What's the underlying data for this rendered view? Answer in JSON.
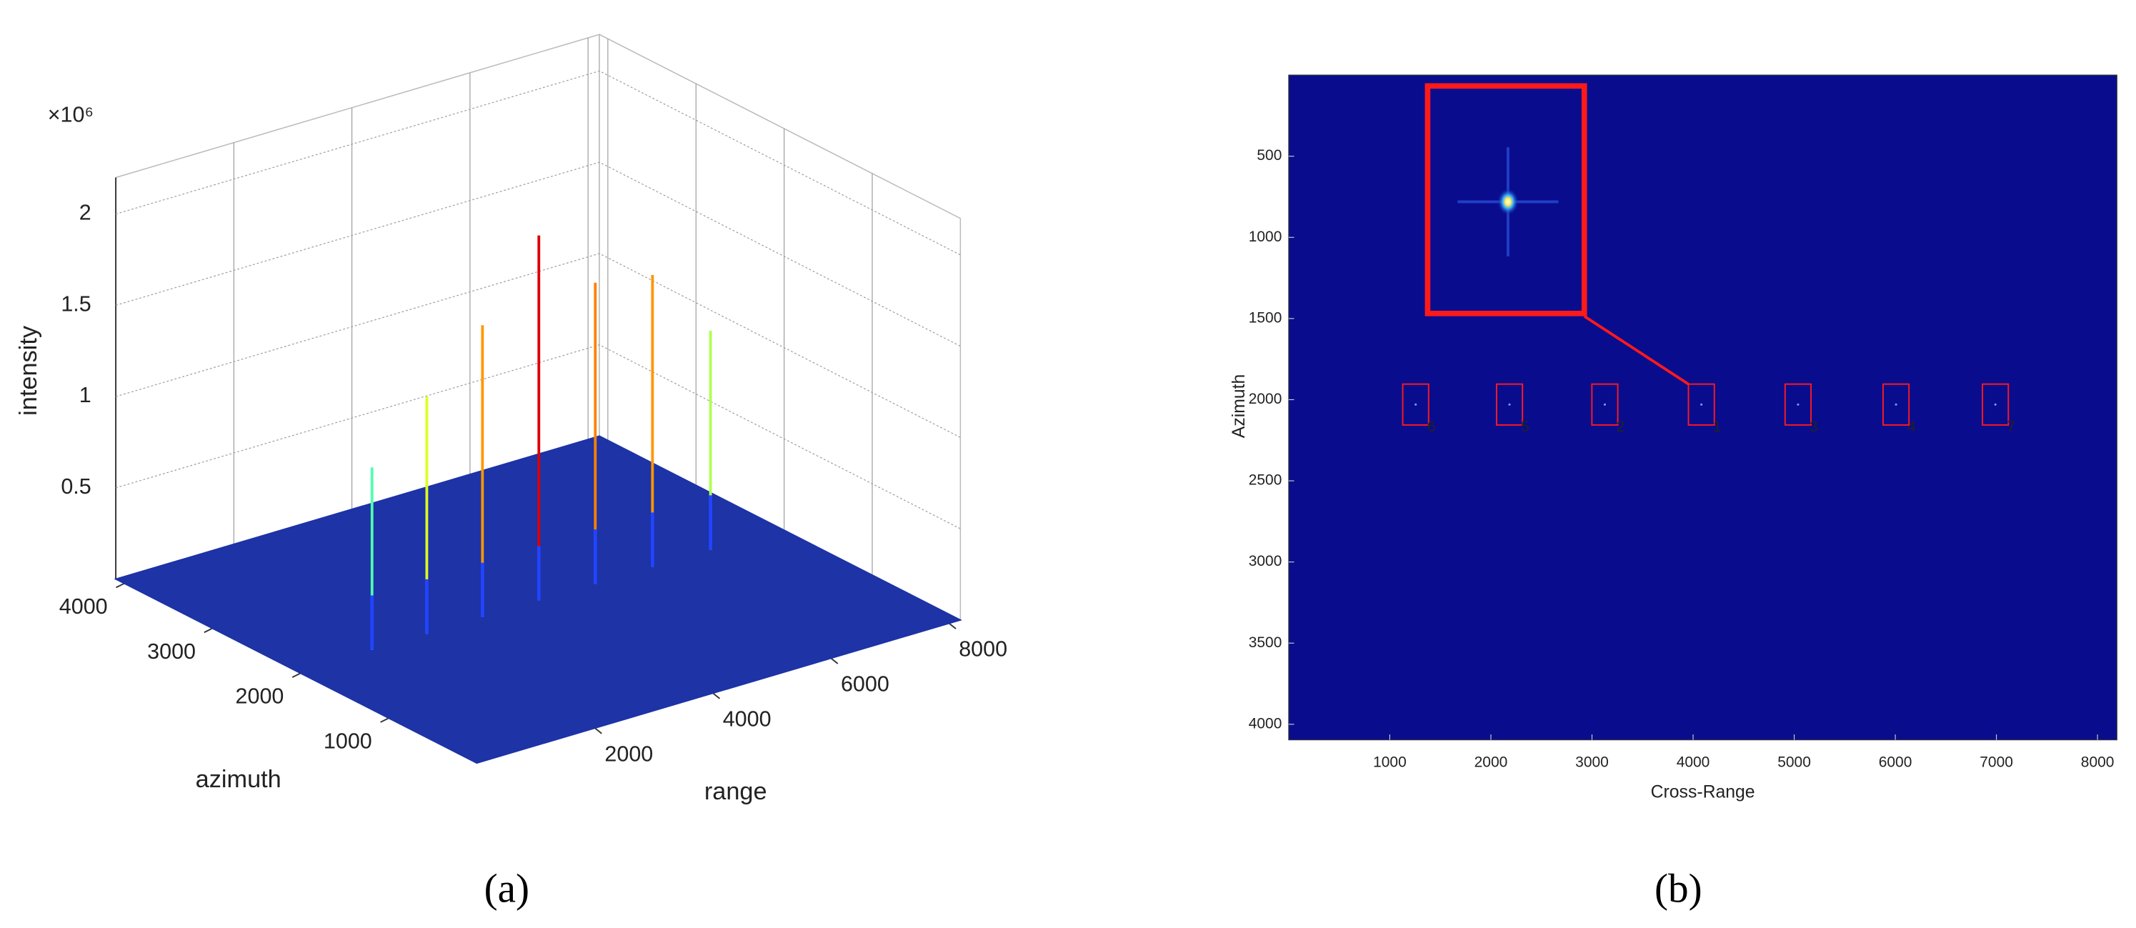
{
  "chart_data": [
    {
      "type": "stem3d",
      "label": "(a)",
      "xlabel": "range",
      "ylabel": "azimuth",
      "zlabel": "intensity",
      "z_multiplier": "×10⁶",
      "x": [
        1256,
        2184,
        3127,
        4082,
        5038,
        6007,
        6990
      ],
      "y": [
        2030,
        2030,
        2030,
        2030,
        2030,
        2030,
        2030
      ],
      "values": [
        1.0,
        1.3,
        1.6,
        2.0,
        1.65,
        1.6,
        1.2
      ],
      "xlim": [
        0,
        8192
      ],
      "ylim": [
        0,
        4096
      ],
      "zlim": [
        0,
        2.2
      ],
      "xticks": [
        2000,
        4000,
        6000,
        8000
      ],
      "yticks": [
        1000,
        2000,
        3000,
        4000
      ],
      "zticks": [
        0.5,
        1,
        1.5,
        2
      ],
      "colormap": "jet",
      "grid": true
    },
    {
      "type": "image",
      "label": "(b)",
      "xlabel": "Cross-Range",
      "ylabel": "Azimuth",
      "labels": [
        "6",
        "5",
        "2",
        "1",
        "3",
        "4",
        "7"
      ],
      "x": [
        1256,
        2184,
        3127,
        4082,
        5038,
        6007,
        6990
      ],
      "y": [
        2030,
        2030,
        2030,
        2030,
        2030,
        2030,
        2030
      ],
      "xlim": [
        0,
        8192
      ],
      "ylim": [
        0,
        4096
      ],
      "y_reversed": true,
      "xticks": [
        1000,
        2000,
        3000,
        4000,
        5000,
        6000,
        7000,
        8000
      ],
      "yticks": [
        500,
        1000,
        1500,
        2000,
        2500,
        3000,
        3500,
        4000
      ],
      "background_color": "#0a0c8e",
      "box_color": "#ff1a1a"
    }
  ]
}
